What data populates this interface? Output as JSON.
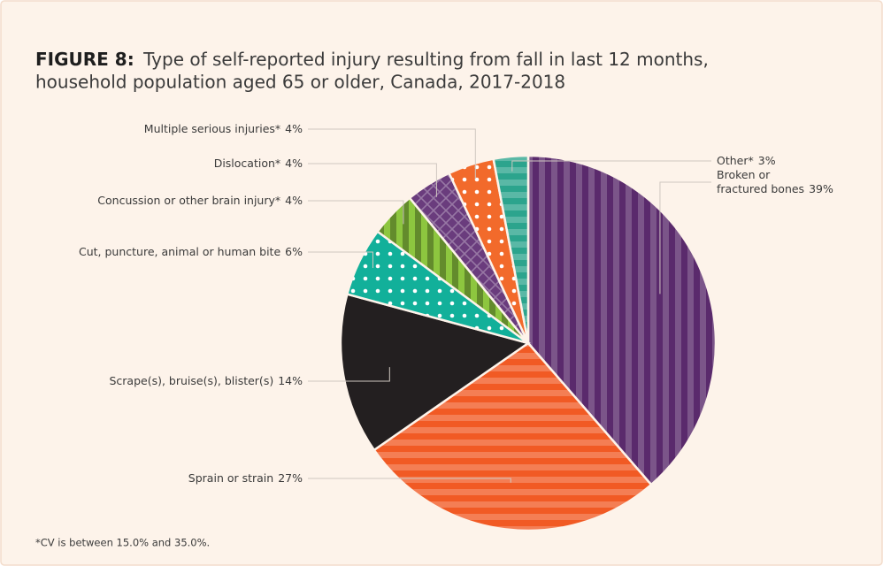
{
  "chart_data": {
    "type": "pie",
    "title_label": "FIGURE 8:",
    "title": "Type of self-reported injury resulting from fall in last 12 months,",
    "title_line2": "household population aged 65 or older, Canada, 2017-2018",
    "footnote": "*CV is between 15.0% and 35.0%.",
    "categories": [
      "Broken or fractured bones",
      "Sprain or strain",
      "Scrape(s), bruise(s), blister(s)",
      "Cut, puncture, animal or human bite",
      "Concussion or other brain injury*",
      "Dislocation*",
      "Multiple serious injuries*",
      "Other*"
    ],
    "values": [
      39,
      27,
      14,
      6,
      4,
      4,
      4,
      3
    ],
    "value_labels": [
      "39%",
      "27%",
      "14%",
      "6%",
      "4%",
      "4%",
      "4%",
      "3%"
    ],
    "colors": [
      "#5a2a6c",
      "#f15a24",
      "#231f20",
      "#12b09a",
      "#8dc63f",
      "#6a3c7d",
      "#f26a2b",
      "#2ca48d"
    ],
    "patterns": [
      "vstripes",
      "hstripes",
      "solid",
      "dots",
      "vstripes",
      "crosshatch",
      "dots",
      "hstripes"
    ]
  }
}
